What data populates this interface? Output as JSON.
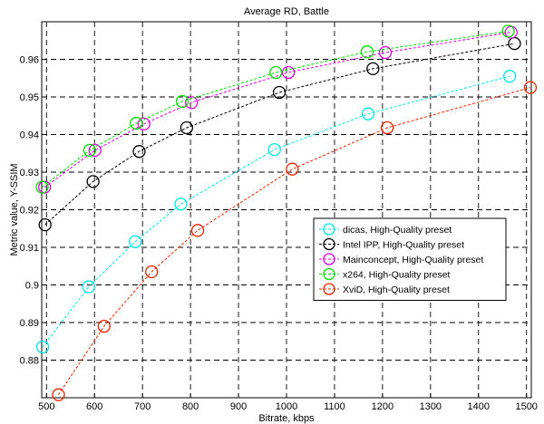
{
  "chart_data": {
    "type": "line",
    "title": "Average RD, Battle",
    "xlabel": "Bitrate, kbps",
    "ylabel": "Metric value, Y-SSIM",
    "xlim": [
      490,
      1510
    ],
    "ylim": [
      0.87,
      0.97
    ],
    "xticks": [
      500,
      600,
      700,
      800,
      900,
      1000,
      1100,
      1200,
      1300,
      1400,
      1500
    ],
    "yticks": [
      0.88,
      0.89,
      0.9,
      0.91,
      0.92,
      0.93,
      0.94,
      0.95,
      0.96
    ],
    "ytick_labels": [
      "0.88",
      "0.89",
      "0.9",
      "0.91",
      "0.92",
      "0.93",
      "0.94",
      "0.95",
      "0.96"
    ],
    "grid": true,
    "legend_position": "right",
    "series": [
      {
        "name": "dicas, High-Quality preset",
        "color": "#00e5e5",
        "x": [
          492,
          588,
          685,
          780,
          975,
          1170,
          1465
        ],
        "y": [
          0.8835,
          0.8995,
          0.9115,
          0.9215,
          0.936,
          0.9455,
          0.9555
        ]
      },
      {
        "name": "Intel IPP, High-Quality preset",
        "color": "#000000",
        "x": [
          497,
          597,
          693,
          792,
          985,
          1180,
          1475
        ],
        "y": [
          0.916,
          0.9275,
          0.9355,
          0.9418,
          0.9512,
          0.9575,
          0.9642
        ]
      },
      {
        "name": "Mainconcept, High-Quality preset",
        "color": "#e000e0",
        "x": [
          496,
          601,
          703,
          802,
          1004,
          1206,
          1468
        ],
        "y": [
          0.926,
          0.9358,
          0.9428,
          0.9485,
          0.9565,
          0.9618,
          0.9672
        ]
      },
      {
        "name": "x264, High-Quality preset",
        "color": "#00dd00",
        "x": [
          491,
          590,
          687,
          783,
          978,
          1168,
          1462
        ],
        "y": [
          0.926,
          0.9358,
          0.943,
          0.9488,
          0.9565,
          0.962,
          0.9675
        ]
      },
      {
        "name": "XviD, High-Quality preset",
        "color": "#ee2200",
        "x": [
          525,
          620,
          719,
          815,
          1012,
          1210,
          1508
        ],
        "y": [
          0.8708,
          0.889,
          0.9035,
          0.9145,
          0.9308,
          0.9418,
          0.9525
        ]
      }
    ]
  }
}
